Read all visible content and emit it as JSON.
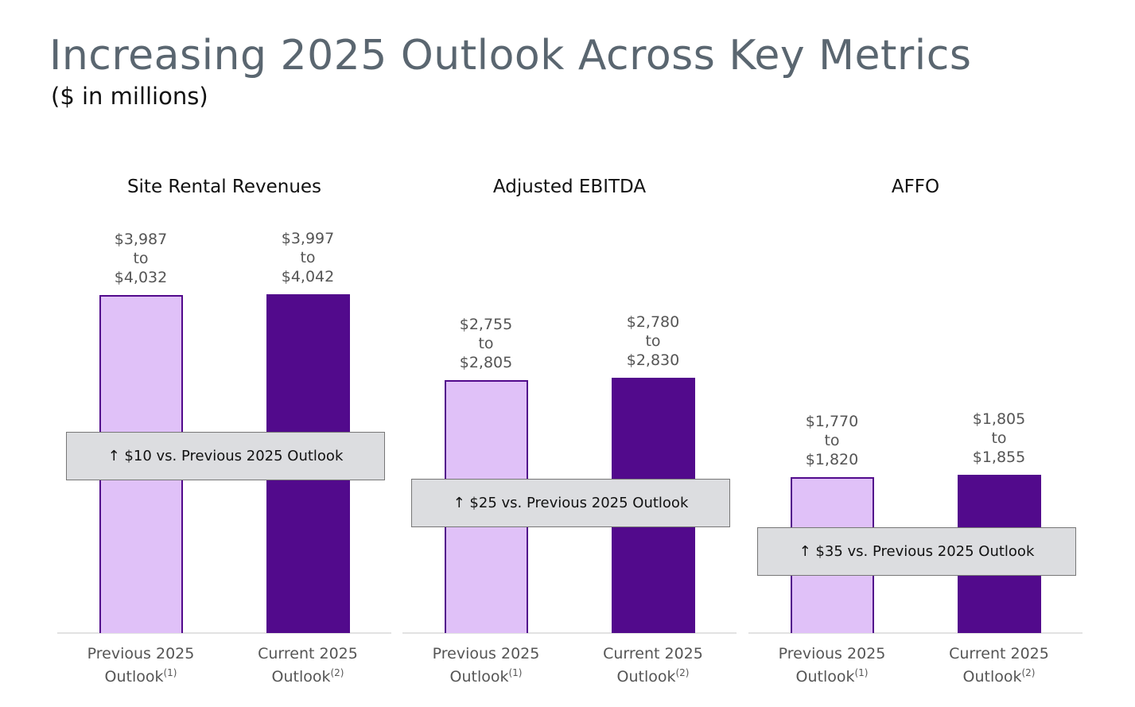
{
  "title": "Increasing 2025 Outlook Across Key Metrics",
  "subtitle": "($ in millions)",
  "chart_data": [
    {
      "type": "bar",
      "title": "Site Rental Revenues",
      "categories": [
        "Previous 2025 Outlook",
        "Current 2025 Outlook"
      ],
      "footnotes": [
        "(1)",
        "(2)"
      ],
      "low_values": [
        3987,
        3997
      ],
      "low_value_labels": [
        "$3,987",
        "$3,997"
      ],
      "range_word": "to",
      "values": [
        4032,
        4042
      ],
      "value_labels": [
        "$4,032",
        "$4,042"
      ],
      "colors": [
        "#e0c1f8",
        "#520a8c"
      ],
      "edge_color": "#520a8c",
      "ylim": [
        0,
        4900
      ],
      "annotation": "↑ $10 vs. Previous 2025 Outlook"
    },
    {
      "type": "bar",
      "title": "Adjusted EBITDA",
      "categories": [
        "Previous 2025 Outlook",
        "Current 2025 Outlook"
      ],
      "footnotes": [
        "(1)",
        "(2)"
      ],
      "low_values": [
        2755,
        2780
      ],
      "low_value_labels": [
        "$2,755",
        "$2,780"
      ],
      "range_word": "to",
      "values": [
        2805,
        2830
      ],
      "value_labels": [
        "$2,805",
        "$2,830"
      ],
      "colors": [
        "#e0c1f8",
        "#520a8c"
      ],
      "edge_color": "#520a8c",
      "ylim": [
        0,
        4550
      ],
      "annotation": "↑ $25 vs. Previous 2025 Outlook"
    },
    {
      "type": "bar",
      "title": "AFFO",
      "categories": [
        "Previous 2025 Outlook",
        "Current 2025 Outlook"
      ],
      "footnotes": [
        "(1)",
        "(2)"
      ],
      "low_values": [
        1770,
        1805
      ],
      "low_value_labels": [
        "$1,770",
        "$1,805"
      ],
      "range_word": "to",
      "values": [
        1820,
        1855
      ],
      "value_labels": [
        "$1,820",
        "$1,855"
      ],
      "colors": [
        "#e0c1f8",
        "#520a8c"
      ],
      "edge_color": "#520a8c",
      "ylim": [
        0,
        4800
      ],
      "annotation": "↑ $35 vs. Previous 2025 Outlook"
    }
  ]
}
